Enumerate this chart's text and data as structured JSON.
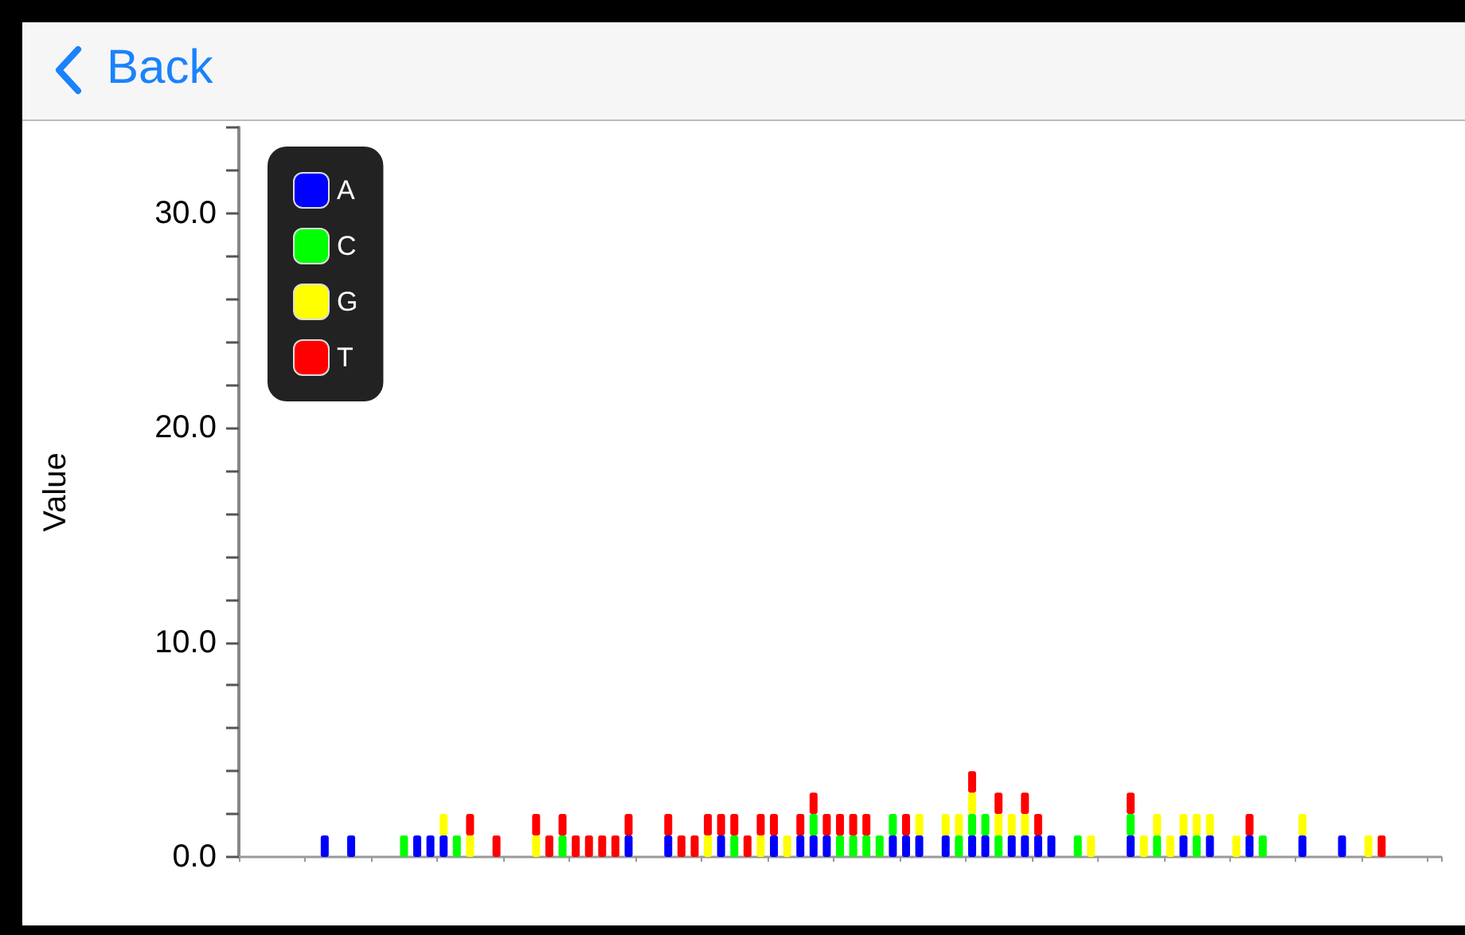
{
  "chart_data": {
    "type": "bar",
    "stacked": true,
    "ylabel": "Value",
    "annotations": [
      "Back"
    ],
    "legend": "top left",
    "grid": false,
    "tick_labels": "y",
    "categories": [
      null,
      null,
      null,
      null,
      null,
      null,
      null,
      null,
      null,
      null,
      null,
      null,
      null,
      null,
      null,
      null,
      null,
      null,
      null,
      null,
      null,
      null,
      null,
      null,
      null,
      null,
      null,
      null,
      null,
      null,
      null,
      null,
      null,
      null,
      null,
      null,
      null,
      null,
      null,
      null,
      null,
      null,
      null,
      null,
      null,
      null,
      null,
      null,
      null,
      null,
      null,
      null,
      null,
      null,
      null,
      null,
      null,
      null,
      null,
      null,
      null,
      null,
      null,
      null,
      null,
      null,
      null,
      null,
      null,
      null,
      null,
      null,
      null,
      null,
      null,
      null,
      null,
      null,
      null,
      null,
      null,
      null,
      null,
      null,
      null,
      null,
      null,
      null,
      null,
      null,
      null
    ],
    "ylim": [
      0,
      34
    ],
    "yticks": [
      {
        "value": 0,
        "label": "0.0"
      },
      {
        "value": 2,
        "label": null
      },
      {
        "value": 4,
        "label": null
      },
      {
        "value": 6,
        "label": null
      },
      {
        "value": 8,
        "label": null
      },
      {
        "value": 10,
        "label": "10.0"
      },
      {
        "value": 12,
        "label": null
      },
      {
        "value": 14,
        "label": null
      },
      {
        "value": 16,
        "label": null
      },
      {
        "value": 18,
        "label": null
      },
      {
        "value": 20,
        "label": "20.0"
      },
      {
        "value": 22,
        "label": null
      },
      {
        "value": 24,
        "label": null
      },
      {
        "value": 26,
        "label": null
      },
      {
        "value": 28,
        "label": null
      },
      {
        "value": 30,
        "label": "30.0"
      },
      {
        "value": 32,
        "label": null
      },
      {
        "value": 34,
        "label": null
      }
    ],
    "series": [
      {
        "name": "A",
        "color": "#0000ff",
        "values": [
          null,
          null,
          null,
          null,
          null,
          null,
          1,
          null,
          1,
          null,
          null,
          null,
          null,
          1,
          1,
          1,
          null,
          null,
          null,
          null,
          null,
          null,
          null,
          null,
          null,
          null,
          null,
          null,
          null,
          1,
          null,
          null,
          1,
          null,
          null,
          null,
          1,
          null,
          null,
          null,
          1,
          null,
          1,
          1,
          1,
          null,
          null,
          null,
          null,
          1,
          1,
          1,
          null,
          1,
          null,
          1,
          1,
          null,
          1,
          1,
          1,
          1,
          null,
          null,
          null,
          null,
          null,
          1,
          null,
          null,
          null,
          1,
          null,
          1,
          null,
          null,
          1,
          null,
          null,
          null,
          1,
          null,
          null,
          1,
          null,
          null,
          null,
          null,
          null,
          null,
          null
        ]
      },
      {
        "name": "C",
        "color": "#00ff00",
        "values": [
          null,
          null,
          null,
          null,
          null,
          null,
          null,
          null,
          null,
          null,
          null,
          null,
          1,
          null,
          null,
          null,
          1,
          null,
          null,
          null,
          null,
          null,
          null,
          null,
          1,
          null,
          null,
          null,
          null,
          null,
          null,
          null,
          null,
          null,
          null,
          null,
          null,
          1,
          null,
          null,
          null,
          null,
          null,
          1,
          null,
          1,
          1,
          1,
          1,
          1,
          null,
          null,
          null,
          null,
          1,
          1,
          1,
          1,
          null,
          null,
          null,
          null,
          null,
          1,
          null,
          null,
          null,
          1,
          null,
          1,
          null,
          null,
          1,
          null,
          null,
          null,
          null,
          1,
          null,
          null,
          null,
          null,
          null,
          null,
          null,
          null,
          null,
          null,
          null,
          null,
          null
        ]
      },
      {
        "name": "G",
        "color": "#ffff00",
        "values": [
          null,
          null,
          null,
          null,
          null,
          null,
          null,
          null,
          null,
          null,
          null,
          null,
          null,
          null,
          null,
          1,
          null,
          1,
          null,
          null,
          null,
          null,
          1,
          null,
          null,
          null,
          null,
          null,
          null,
          null,
          null,
          null,
          null,
          null,
          null,
          1,
          null,
          null,
          null,
          1,
          null,
          1,
          null,
          null,
          null,
          null,
          null,
          null,
          null,
          null,
          null,
          1,
          null,
          1,
          1,
          1,
          null,
          1,
          1,
          1,
          null,
          null,
          null,
          null,
          1,
          null,
          null,
          null,
          1,
          1,
          1,
          1,
          1,
          1,
          null,
          1,
          null,
          null,
          null,
          null,
          1,
          null,
          null,
          null,
          null,
          1,
          null,
          null,
          null,
          null,
          null
        ]
      },
      {
        "name": "T",
        "color": "#ff0000",
        "values": [
          null,
          null,
          null,
          null,
          null,
          null,
          null,
          null,
          null,
          null,
          null,
          null,
          null,
          null,
          null,
          null,
          null,
          1,
          null,
          1,
          null,
          null,
          1,
          1,
          1,
          1,
          1,
          1,
          1,
          1,
          null,
          null,
          1,
          1,
          1,
          1,
          1,
          1,
          1,
          1,
          1,
          null,
          1,
          1,
          1,
          1,
          1,
          1,
          null,
          null,
          1,
          null,
          null,
          null,
          null,
          1,
          null,
          1,
          null,
          1,
          1,
          null,
          null,
          null,
          null,
          null,
          null,
          1,
          null,
          null,
          null,
          null,
          null,
          null,
          null,
          null,
          1,
          null,
          null,
          null,
          null,
          null,
          null,
          null,
          null,
          null,
          1,
          null,
          null,
          null,
          null
        ]
      }
    ]
  }
}
